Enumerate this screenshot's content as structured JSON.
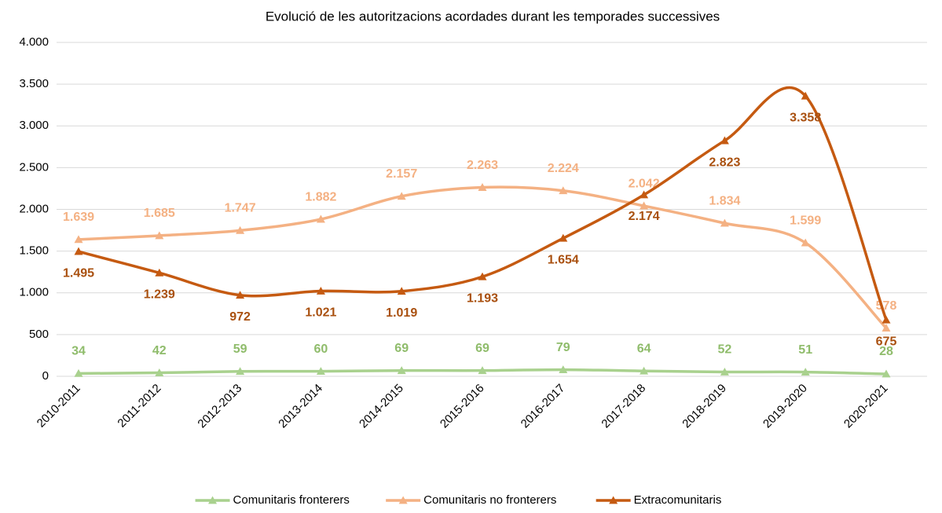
{
  "chart_data": {
    "type": "line",
    "title": "Evolució de les autoritzacions acordades durant les temporades successives",
    "categories": [
      "2010-2011",
      "2011-2012",
      "2012-2013",
      "2013-2014",
      "2014-2015",
      "2015-2016",
      "2016-2017",
      "2017-2018",
      "2018-2019",
      "2019-2020",
      "2020-2021"
    ],
    "series": [
      {
        "name": "Comunitaris fronterers",
        "color": "#a9d18e",
        "label_color": "#8fbc6b",
        "values": [
          34,
          42,
          59,
          60,
          69,
          69,
          79,
          64,
          52,
          51,
          28
        ]
      },
      {
        "name": "Comunitaris no fronterers",
        "color": "#f4b183",
        "label_color": "#f4b183",
        "values": [
          1639,
          1685,
          1747,
          1882,
          2157,
          2263,
          2224,
          2042,
          1834,
          1599,
          578
        ],
        "value_labels": [
          "1.639",
          "1.685",
          "1.747",
          "1.882",
          "2.157",
          "2.263",
          "2.224",
          "2.042",
          "1.834",
          "1.599",
          "578"
        ]
      },
      {
        "name": "Extracomunitaris",
        "color": "#c55a11",
        "label_color": "#a9500f",
        "values": [
          1495,
          1239,
          972,
          1021,
          1019,
          1193,
          1654,
          2174,
          2823,
          3358,
          675
        ],
        "value_labels": [
          "1.495",
          "1.239",
          "972",
          "1.021",
          "1.019",
          "1.193",
          "1.654",
          "2.174",
          "2.823",
          "3.358",
          "675"
        ]
      }
    ],
    "ylim": [
      0,
      4000
    ],
    "yticks": [
      0,
      500,
      {
        "value": 1000,
        "label": "1.000"
      },
      {
        "value": 1500,
        "label": "1.500"
      },
      {
        "value": 2000,
        "label": "2.000"
      },
      {
        "value": 2500,
        "label": "2.500"
      },
      {
        "value": 3000,
        "label": "3.000"
      },
      {
        "value": 3500,
        "label": "3.500"
      },
      {
        "value": 4000,
        "label": "4.000"
      }
    ],
    "grid": true,
    "legend": "bottom"
  }
}
